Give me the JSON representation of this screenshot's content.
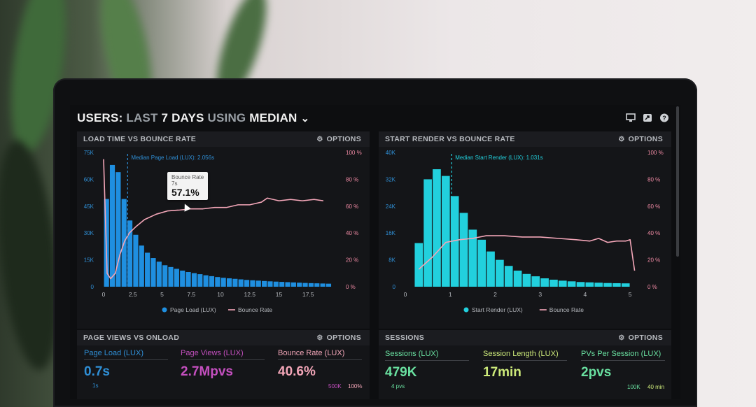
{
  "header": {
    "part1": "USERS:",
    "part2": "LAST",
    "part3": "7 DAYS",
    "part4": "USING",
    "part5": "MEDIAN",
    "icons": [
      "monitor-icon",
      "share-icon",
      "help-icon"
    ]
  },
  "options_label": "OPTIONS",
  "panels": {
    "load_time": {
      "title": "LOAD TIME VS BOUNCE RATE",
      "median_label": "Median Page Load (LUX): 2.056s",
      "legend": [
        "Page Load (LUX)",
        "Bounce Rate"
      ],
      "tooltip": {
        "label": "Bounce Rate",
        "sub": "7s",
        "value": "57.1%"
      }
    },
    "start_render": {
      "title": "START RENDER VS BOUNCE RATE",
      "median_label": "Median Start Render (LUX): 1.031s",
      "legend": [
        "Start Render (LUX)",
        "Bounce Rate"
      ]
    },
    "page_views": {
      "title": "PAGE VIEWS VS ONLOAD",
      "metrics": [
        {
          "label": "Page Load (LUX)",
          "value": "0.7s",
          "foot": "1s"
        },
        {
          "label": "Page Views (LUX)",
          "value": "2.7Mpvs",
          "foot": ""
        },
        {
          "label": "Bounce Rate (LUX)",
          "value": "40.6%",
          "foot": ""
        }
      ],
      "mini_axis": [
        "500K",
        "100%"
      ]
    },
    "sessions": {
      "title": "SESSIONS",
      "metrics": [
        {
          "label": "Sessions (LUX)",
          "value": "479K",
          "foot": "4 pvs"
        },
        {
          "label": "Session Length (LUX)",
          "value": "17min",
          "foot": ""
        },
        {
          "label": "PVs Per Session (LUX)",
          "value": "2pvs",
          "foot": ""
        }
      ],
      "mini_axis": [
        "100K",
        "40 min"
      ]
    }
  },
  "colors": {
    "blue": "#1f8fe0",
    "cyan": "#22d0dd",
    "pink": "#f3a6b8",
    "purple": "#c44fbf",
    "green": "#69e0a0",
    "lime": "#cdea7a"
  },
  "chart_data": [
    {
      "type": "bar",
      "title": "LOAD TIME VS BOUNCE RATE",
      "x_ticks": [
        "0",
        "2.5",
        "5",
        "7.5",
        "10",
        "12.5",
        "15",
        "17.5"
      ],
      "y_left_ticks": [
        "0",
        "15K",
        "30K",
        "45K",
        "60K",
        "75K"
      ],
      "y_right_ticks": [
        "0 %",
        "20 %",
        "40 %",
        "60 %",
        "80 %",
        "100 %"
      ],
      "ylim_left": [
        0,
        75000
      ],
      "ylim_right": [
        0,
        100
      ],
      "xlim": [
        0,
        20
      ],
      "median_x": 2.056,
      "series": [
        {
          "name": "Page Load (LUX)",
          "bin_width": 0.5,
          "bin_starts": [
            0,
            0.5,
            1,
            1.5,
            2,
            2.5,
            3,
            3.5,
            4,
            4.5,
            5,
            5.5,
            6,
            6.5,
            7,
            7.5,
            8,
            8.5,
            9,
            9.5,
            10,
            10.5,
            11,
            11.5,
            12,
            12.5,
            13,
            13.5,
            14,
            14.5,
            15,
            15.5,
            16,
            16.5,
            17,
            17.5,
            18,
            18.5,
            19
          ],
          "values": [
            49000,
            68000,
            64000,
            49000,
            37000,
            29000,
            23000,
            19000,
            16000,
            14000,
            12000,
            11000,
            10000,
            9000,
            8200,
            7600,
            7000,
            6400,
            5900,
            5400,
            5000,
            4700,
            4400,
            4100,
            3800,
            3600,
            3400,
            3200,
            3000,
            2850,
            2700,
            2550,
            2400,
            2250,
            2100,
            2000,
            1900,
            1800,
            1700
          ]
        },
        {
          "name": "Bounce Rate",
          "x": [
            0,
            0.3,
            0.6,
            1.0,
            1.4,
            1.8,
            2.2,
            2.8,
            3.5,
            4.5,
            5.5,
            6.5,
            7.5,
            8.5,
            9.5,
            10.5,
            11.5,
            12.5,
            13.5,
            14.0,
            15.0,
            16.0,
            17.0,
            18.0,
            18.8
          ],
          "values": [
            95,
            10,
            6,
            10,
            24,
            34,
            40,
            45,
            50,
            54,
            56.5,
            57.1,
            58,
            58,
            59,
            59,
            61,
            61,
            63,
            66,
            64,
            65,
            64,
            65,
            64
          ]
        }
      ]
    },
    {
      "type": "bar",
      "title": "START RENDER VS BOUNCE RATE",
      "x_ticks": [
        "0",
        "1",
        "2",
        "3",
        "4",
        "5"
      ],
      "y_left_ticks": [
        "0",
        "8K",
        "16K",
        "24K",
        "32K",
        "40K"
      ],
      "y_right_ticks": [
        "0 %",
        "20 %",
        "40 %",
        "60 %",
        "80 %",
        "100 %"
      ],
      "ylim_left": [
        0,
        40000
      ],
      "ylim_right": [
        0,
        100
      ],
      "xlim": [
        0,
        5.2
      ],
      "median_x": 1.031,
      "series": [
        {
          "name": "Start Render (LUX)",
          "bin_width": 0.2,
          "bin_starts": [
            0.2,
            0.4,
            0.6,
            0.8,
            1.0,
            1.2,
            1.4,
            1.6,
            1.8,
            2.0,
            2.2,
            2.4,
            2.6,
            2.8,
            3.0,
            3.2,
            3.4,
            3.6,
            3.8,
            4.0,
            4.2,
            4.4,
            4.6,
            4.8
          ],
          "values": [
            13000,
            32000,
            35000,
            33000,
            27000,
            22000,
            17000,
            14000,
            10500,
            8000,
            6200,
            4800,
            3800,
            3100,
            2500,
            2100,
            1800,
            1600,
            1400,
            1300,
            1200,
            1100,
            1050,
            1000
          ]
        },
        {
          "name": "Bounce Rate",
          "x": [
            0.3,
            0.6,
            0.9,
            1.2,
            1.5,
            1.8,
            2.2,
            2.6,
            3.0,
            3.4,
            3.8,
            4.1,
            4.3,
            4.5,
            4.7,
            4.9,
            5.0,
            5.1
          ],
          "values": [
            13,
            22,
            33,
            35,
            36,
            38,
            38,
            37,
            37,
            36,
            35,
            34,
            36,
            33,
            34,
            34,
            35,
            12
          ]
        }
      ]
    }
  ]
}
